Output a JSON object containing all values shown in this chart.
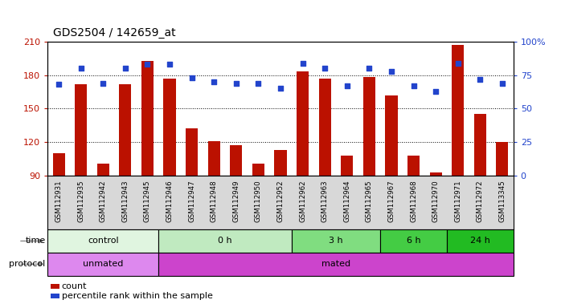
{
  "title": "GDS2504 / 142659_at",
  "samples": [
    "GSM112931",
    "GSM112935",
    "GSM112942",
    "GSM112943",
    "GSM112945",
    "GSM112946",
    "GSM112947",
    "GSM112948",
    "GSM112949",
    "GSM112950",
    "GSM112952",
    "GSM112962",
    "GSM112963",
    "GSM112964",
    "GSM112965",
    "GSM112967",
    "GSM112968",
    "GSM112970",
    "GSM112971",
    "GSM112972",
    "GSM113345"
  ],
  "counts": [
    110,
    172,
    101,
    172,
    193,
    177,
    132,
    121,
    117,
    101,
    113,
    183,
    177,
    108,
    178,
    162,
    108,
    93,
    207,
    145,
    120
  ],
  "percentile": [
    68,
    80,
    69,
    80,
    83,
    83,
    73,
    70,
    69,
    69,
    65,
    84,
    80,
    67,
    80,
    78,
    67,
    63,
    84,
    72,
    69
  ],
  "ylim_left": [
    90,
    210
  ],
  "ylim_right": [
    0,
    100
  ],
  "bar_color": "#bb1100",
  "scatter_color": "#2244cc",
  "yticks_left": [
    90,
    120,
    150,
    180,
    210
  ],
  "yticks_right": [
    0,
    25,
    50,
    75,
    100
  ],
  "ytick_labels_right": [
    "0",
    "25",
    "50",
    "75",
    "100%"
  ],
  "time_groups": [
    {
      "label": "control",
      "start": 0,
      "end": 4,
      "color": "#e0f5e0"
    },
    {
      "label": "0 h",
      "start": 5,
      "end": 10,
      "color": "#c0eac0"
    },
    {
      "label": "3 h",
      "start": 11,
      "end": 14,
      "color": "#80dd80"
    },
    {
      "label": "6 h",
      "start": 15,
      "end": 17,
      "color": "#44cc44"
    },
    {
      "label": "24 h",
      "start": 18,
      "end": 20,
      "color": "#22bb22"
    }
  ],
  "protocol_groups": [
    {
      "label": "unmated",
      "start": 0,
      "end": 4,
      "color": "#dd88ee"
    },
    {
      "label": "mated",
      "start": 5,
      "end": 20,
      "color": "#cc44cc"
    }
  ]
}
